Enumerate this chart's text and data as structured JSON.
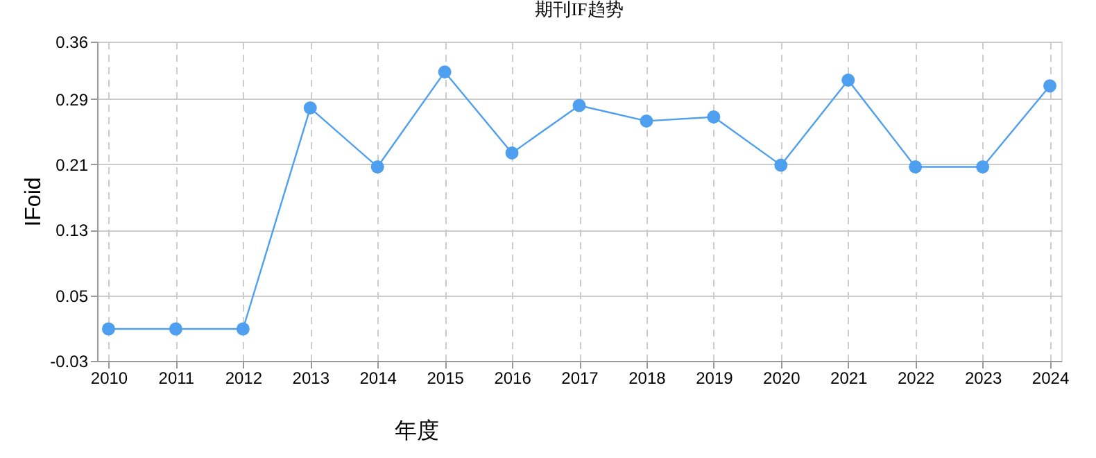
{
  "chart_data": {
    "type": "line",
    "title": "期刊IF趋势",
    "xlabel": "年度",
    "ylabel": "IFoid",
    "categories": [
      "2010",
      "2011",
      "2012",
      "2013",
      "2014",
      "2015",
      "2016",
      "2017",
      "2018",
      "2019",
      "2020",
      "2021",
      "2022",
      "2023",
      "2024"
    ],
    "series": [
      {
        "color": "#4f9ff0",
        "values": [
          0.009,
          0.009,
          0.009,
          0.279,
          0.207,
          0.323,
          0.224,
          0.282,
          0.263,
          0.268,
          0.209,
          0.313,
          0.207,
          0.207,
          0.306
        ]
      }
    ],
    "ylim": [
      -0.03,
      0.36
    ],
    "yticks": [
      -0.03,
      0.05,
      0.13,
      0.21,
      0.29,
      0.36
    ],
    "grid": true,
    "marker": "circle",
    "line_style": "solid"
  }
}
